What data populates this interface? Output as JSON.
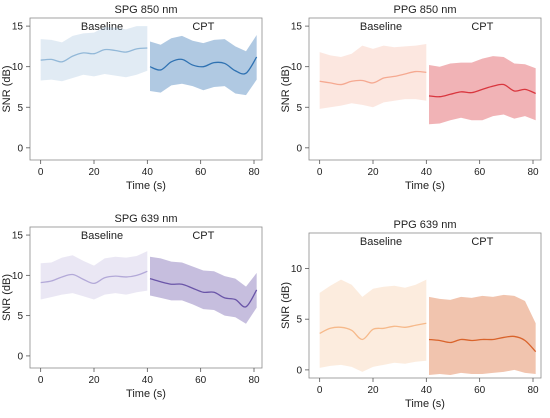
{
  "chart_data": [
    {
      "type": "area",
      "title": "SPG 850 nm",
      "xlabel": "Time (s)",
      "ylabel": "SNR (dB)",
      "xlim": [
        -4,
        83
      ],
      "ylim": [
        -1.5,
        16
      ],
      "xticks": [
        "0",
        "20",
        "40",
        "60",
        "80"
      ],
      "yticks": [
        "0",
        "5",
        "10",
        "15"
      ],
      "phase_labels": [
        "Baseline",
        "CPT"
      ],
      "grid": false,
      "colors": {
        "baseline": "#92b8d8",
        "cpt": "#2f72b2"
      },
      "series": [
        {
          "name": "Baseline",
          "x": [
            0,
            4,
            8,
            12,
            16,
            20,
            24,
            28,
            32,
            36,
            40
          ],
          "values": [
            10.8,
            10.9,
            10.6,
            11.3,
            11.7,
            11.6,
            12.1,
            12.0,
            11.8,
            12.2,
            12.3
          ],
          "lower": [
            8.3,
            8.4,
            8.2,
            8.6,
            9.0,
            8.8,
            9.1,
            8.9,
            8.7,
            9.0,
            9.5
          ],
          "upper": [
            13.4,
            13.3,
            13.0,
            13.8,
            14.1,
            14.2,
            14.9,
            14.8,
            14.6,
            15.0,
            15.0
          ]
        },
        {
          "name": "CPT",
          "x": [
            41,
            45,
            49,
            53,
            57,
            61,
            65,
            69,
            73,
            77,
            81
          ],
          "values": [
            10.0,
            9.6,
            10.6,
            10.9,
            10.2,
            10.0,
            10.5,
            10.4,
            9.5,
            9.2,
            11.2
          ],
          "lower": [
            7.0,
            6.8,
            7.7,
            7.9,
            7.6,
            7.1,
            7.5,
            7.6,
            6.7,
            6.5,
            8.4
          ],
          "upper": [
            13.1,
            12.7,
            13.5,
            13.8,
            13.2,
            12.9,
            13.3,
            13.4,
            12.5,
            11.9,
            13.9
          ]
        }
      ]
    },
    {
      "type": "area",
      "title": "PPG 850 nm",
      "xlabel": "Time (s)",
      "ylabel": "SNR (dB)",
      "xlim": [
        -4,
        83
      ],
      "ylim": [
        -1.5,
        16
      ],
      "xticks": [
        "0",
        "20",
        "40",
        "60",
        "80"
      ],
      "yticks": [
        "0",
        "5",
        "10",
        "15"
      ],
      "phase_labels": [
        "Baseline",
        "CPT"
      ],
      "grid": false,
      "colors": {
        "baseline": "#f5a991",
        "cpt": "#d9363e"
      },
      "series": [
        {
          "name": "Baseline",
          "x": [
            0,
            4,
            8,
            12,
            16,
            20,
            24,
            28,
            32,
            36,
            40
          ],
          "values": [
            8.2,
            8.0,
            7.8,
            8.2,
            8.3,
            8.0,
            8.6,
            8.8,
            9.1,
            9.4,
            9.3
          ],
          "lower": [
            4.8,
            5.0,
            5.2,
            5.5,
            5.3,
            5.0,
            5.6,
            5.8,
            6.0,
            6.0,
            5.8
          ],
          "upper": [
            11.8,
            11.4,
            11.2,
            11.6,
            12.6,
            12.2,
            12.6,
            12.4,
            12.5,
            12.6,
            12.8
          ]
        },
        {
          "name": "CPT",
          "x": [
            41,
            45,
            49,
            53,
            57,
            61,
            65,
            69,
            73,
            77,
            81
          ],
          "values": [
            6.4,
            6.3,
            6.6,
            6.9,
            6.8,
            7.2,
            7.6,
            7.8,
            7.0,
            7.2,
            6.7
          ],
          "lower": [
            2.9,
            3.0,
            3.4,
            3.7,
            3.4,
            3.4,
            3.9,
            4.1,
            3.6,
            3.9,
            3.4
          ],
          "upper": [
            10.2,
            10.0,
            10.4,
            10.5,
            10.5,
            11.0,
            11.3,
            11.2,
            10.4,
            10.3,
            9.8
          ]
        }
      ]
    },
    {
      "type": "area",
      "title": "SPG 639 nm",
      "xlabel": "Time (s)",
      "ylabel": "SNR (dB)",
      "xlim": [
        -4,
        83
      ],
      "ylim": [
        -1.5,
        16
      ],
      "xticks": [
        "0",
        "20",
        "40",
        "60",
        "80"
      ],
      "yticks": [
        "0",
        "5",
        "10",
        "15"
      ],
      "phase_labels": [
        "Baseline",
        "CPT"
      ],
      "grid": false,
      "colors": {
        "baseline": "#b3a9d8",
        "cpt": "#6a55a8"
      },
      "series": [
        {
          "name": "Baseline",
          "x": [
            0,
            4,
            8,
            12,
            16,
            20,
            24,
            28,
            32,
            36,
            40
          ],
          "values": [
            9.1,
            9.3,
            9.8,
            10.1,
            9.5,
            9.0,
            9.7,
            9.9,
            9.8,
            10.0,
            10.5
          ],
          "lower": [
            7.0,
            7.3,
            7.6,
            7.8,
            7.4,
            7.0,
            7.6,
            7.8,
            7.6,
            7.9,
            8.1
          ],
          "upper": [
            11.5,
            11.6,
            12.2,
            12.5,
            11.8,
            11.2,
            12.1,
            12.3,
            12.2,
            12.4,
            13.0
          ]
        },
        {
          "name": "CPT",
          "x": [
            41,
            45,
            49,
            53,
            57,
            61,
            65,
            69,
            73,
            77,
            81
          ],
          "values": [
            9.6,
            9.2,
            8.9,
            8.9,
            8.4,
            7.9,
            7.9,
            7.2,
            7.0,
            6.1,
            8.2
          ],
          "lower": [
            7.5,
            7.2,
            6.9,
            6.9,
            6.4,
            5.8,
            5.7,
            5.0,
            4.8,
            4.0,
            6.0
          ],
          "upper": [
            12.3,
            12.1,
            11.7,
            11.6,
            11.1,
            10.6,
            10.5,
            9.9,
            9.6,
            8.6,
            10.3
          ]
        }
      ]
    },
    {
      "type": "area",
      "title": "PPG 639 nm",
      "xlabel": "Time (s)",
      "ylabel": "SNR (dB)",
      "xlim": [
        -4,
        83
      ],
      "ylim": [
        -0.8,
        13.5
      ],
      "xticks": [
        "0",
        "20",
        "40",
        "60",
        "80"
      ],
      "yticks": [
        "0",
        "5",
        "10"
      ],
      "phase_labels": [
        "Baseline",
        "CPT"
      ],
      "grid": false,
      "colors": {
        "baseline": "#f6b98a",
        "cpt": "#d9632b"
      },
      "series": [
        {
          "name": "Baseline",
          "x": [
            0,
            4,
            8,
            12,
            16,
            20,
            24,
            28,
            32,
            36,
            40
          ],
          "values": [
            3.6,
            4.1,
            4.2,
            3.9,
            3.0,
            4.0,
            4.1,
            4.3,
            4.2,
            4.4,
            4.6
          ],
          "lower": [
            0.2,
            0.4,
            0.5,
            0.3,
            -0.2,
            0.3,
            0.5,
            0.7,
            0.6,
            0.8,
            0.9
          ],
          "upper": [
            7.6,
            8.3,
            8.9,
            8.4,
            7.2,
            8.0,
            8.2,
            8.3,
            8.1,
            8.4,
            8.9
          ]
        },
        {
          "name": "CPT",
          "x": [
            41,
            45,
            49,
            53,
            57,
            61,
            65,
            69,
            73,
            77,
            81
          ],
          "values": [
            3.0,
            2.9,
            2.7,
            3.0,
            2.9,
            3.0,
            3.0,
            3.2,
            3.3,
            2.9,
            1.8
          ],
          "lower": [
            -0.5,
            -0.4,
            -0.5,
            -0.3,
            -0.4,
            -0.4,
            -0.3,
            -0.2,
            0.0,
            -0.3,
            -0.4
          ],
          "upper": [
            7.2,
            7.0,
            6.9,
            7.2,
            7.1,
            7.3,
            7.2,
            7.4,
            7.3,
            6.8,
            4.6
          ]
        }
      ]
    }
  ]
}
